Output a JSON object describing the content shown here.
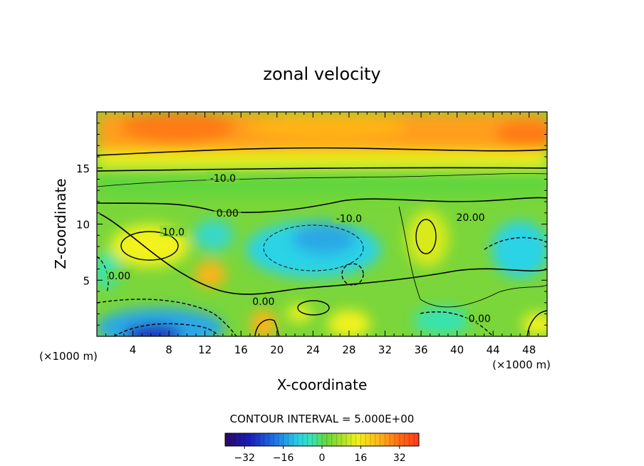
{
  "chart_data": {
    "type": "heatmap",
    "title": "zonal velocity",
    "xlabel": "X-coordinate",
    "ylabel": "Z-coordinate",
    "x_unit": "(×1000 m)",
    "xlim": [
      0,
      50
    ],
    "ylim": [
      0,
      20
    ],
    "x_ticks": [
      4,
      8,
      12,
      16,
      20,
      24,
      28,
      32,
      36,
      40,
      44,
      48
    ],
    "y_ticks": [
      5,
      10,
      15
    ],
    "contour_interval_text": "CONTOUR INTERVAL = 5.000E+00",
    "contour_labels": [
      {
        "text": "-10.0",
        "x": 14.0,
        "z": 14.1
      },
      {
        "text": "0.00",
        "x": 14.5,
        "z": 11.0
      },
      {
        "text": "-10.0",
        "x": 28.0,
        "z": 10.5
      },
      {
        "text": "20.00",
        "x": 41.5,
        "z": 10.6
      },
      {
        "text": "10.0",
        "x": 8.5,
        "z": 9.3
      },
      {
        "text": "0.00",
        "x": 2.5,
        "z": 5.4
      },
      {
        "text": "0.00",
        "x": 18.5,
        "z": 3.1
      },
      {
        "text": "0.00",
        "x": 42.5,
        "z": 1.6
      }
    ],
    "colorbar": {
      "range": [
        -40,
        40
      ],
      "tick_values": [
        -32,
        -16,
        0,
        16,
        32
      ],
      "tick_labels": [
        "-32",
        "-16",
        "0",
        "16",
        "32"
      ]
    }
  },
  "colors": {
    "stops": [
      "#2a0a63",
      "#1a1ab8",
      "#1f6fe6",
      "#2ad3e6",
      "#39e3b0",
      "#64d93a",
      "#a8e12a",
      "#f2f21a",
      "#ffb319",
      "#ff6a14",
      "#ff3a20"
    ]
  }
}
